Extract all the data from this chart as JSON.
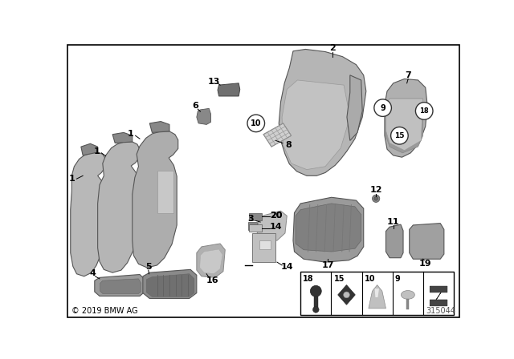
{
  "bg_color": "#ffffff",
  "copyright": "© 2019 BMW AG",
  "part_number": "315044",
  "gray_main": "#aaaaaa",
  "gray_dark": "#888888",
  "gray_mid": "#999999",
  "gray_light": "#c0c0c0",
  "gray_vdark": "#666666",
  "edge_color": "#555555"
}
